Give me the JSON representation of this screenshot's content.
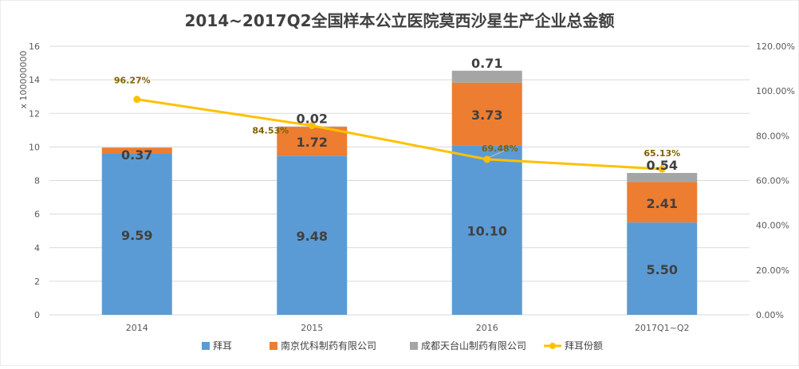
{
  "chart_data": {
    "type": "bar",
    "title": "2014~2017Q2全国样本公立医院莫西沙星生产企业总金额",
    "left_axis_unit": "x 100000000",
    "categories": [
      "2014",
      "2015",
      "2016",
      "2017Q1~Q2"
    ],
    "left_ticks": [
      "0",
      "2",
      "4",
      "6",
      "8",
      "10",
      "12",
      "14",
      "16"
    ],
    "right_ticks": [
      "0.00%",
      "20.00%",
      "40.00%",
      "60.00%",
      "80.00%",
      "100.00%",
      "120.00%"
    ],
    "ylim_left": [
      0,
      16
    ],
    "ylim_right": [
      0,
      1.2
    ],
    "grid": true,
    "legend_position": "bottom",
    "series": [
      {
        "name": "拜耳",
        "kind": "bar",
        "color": "#5b9bd5",
        "values": [
          9.59,
          9.48,
          10.1,
          5.5
        ],
        "labels": [
          "9.59",
          "9.48",
          "10.10",
          "5.50"
        ]
      },
      {
        "name": "南京优科制药有限公司",
        "kind": "bar",
        "color": "#ed7d31",
        "values": [
          0.37,
          1.72,
          3.73,
          2.41
        ],
        "labels": [
          "0.37",
          "1.72",
          "3.73",
          "2.41"
        ]
      },
      {
        "name": "成都天台山制药有限公司",
        "kind": "bar",
        "color": "#a5a5a5",
        "values": [
          0,
          0.02,
          0.71,
          0.54
        ],
        "labels": [
          "",
          "0.02",
          "0.71",
          "0.54"
        ]
      },
      {
        "name": "拜耳份额",
        "kind": "line",
        "color": "#ffc000",
        "label_color": "#7f6000",
        "values": [
          0.9627,
          0.8453,
          0.6948,
          0.6513
        ],
        "labels": [
          "96.27%",
          "84.53%",
          "69.48%",
          "65.13%"
        ]
      }
    ]
  }
}
